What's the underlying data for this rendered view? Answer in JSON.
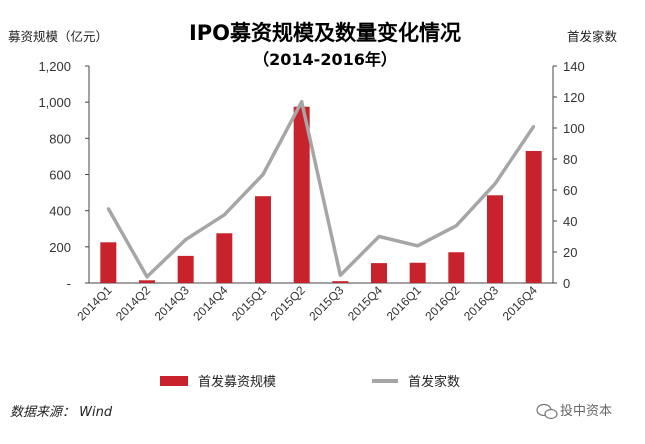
{
  "chart_data": {
    "type": "bar",
    "title": "IPO募资规模及数量变化情况",
    "subtitle": "（2014-2016年）",
    "categories": [
      "2014Q1",
      "2014Q2",
      "2014Q3",
      "2014Q4",
      "2015Q1",
      "2015Q2",
      "2015Q3",
      "2015Q4",
      "2016Q1",
      "2016Q2",
      "2016Q3",
      "2016Q4"
    ],
    "ylabel": "募资规模（亿元）",
    "ylim": [
      0,
      1200
    ],
    "yticks": [
      "-",
      "200",
      "400",
      "600",
      "800",
      "1,000",
      "1,200"
    ],
    "y2label": "首发家数",
    "y2lim": [
      0,
      140
    ],
    "y2ticks": [
      "0",
      "20",
      "40",
      "60",
      "80",
      "100",
      "120",
      "140"
    ],
    "series": [
      {
        "name": "首发募资规模",
        "type": "bar",
        "axis": "left",
        "color": "#c8232c",
        "values": [
          225,
          15,
          150,
          275,
          480,
          975,
          10,
          110,
          112,
          170,
          485,
          730
        ]
      },
      {
        "name": "首发家数",
        "type": "line",
        "axis": "right",
        "color": "#a6a6a6",
        "values": [
          48,
          4,
          28,
          44,
          70,
          117,
          5,
          30,
          24,
          37,
          64,
          101
        ]
      }
    ],
    "grid": false,
    "legend": "bottom"
  },
  "source": "数据来源： Wind",
  "watermark": "投中资本"
}
